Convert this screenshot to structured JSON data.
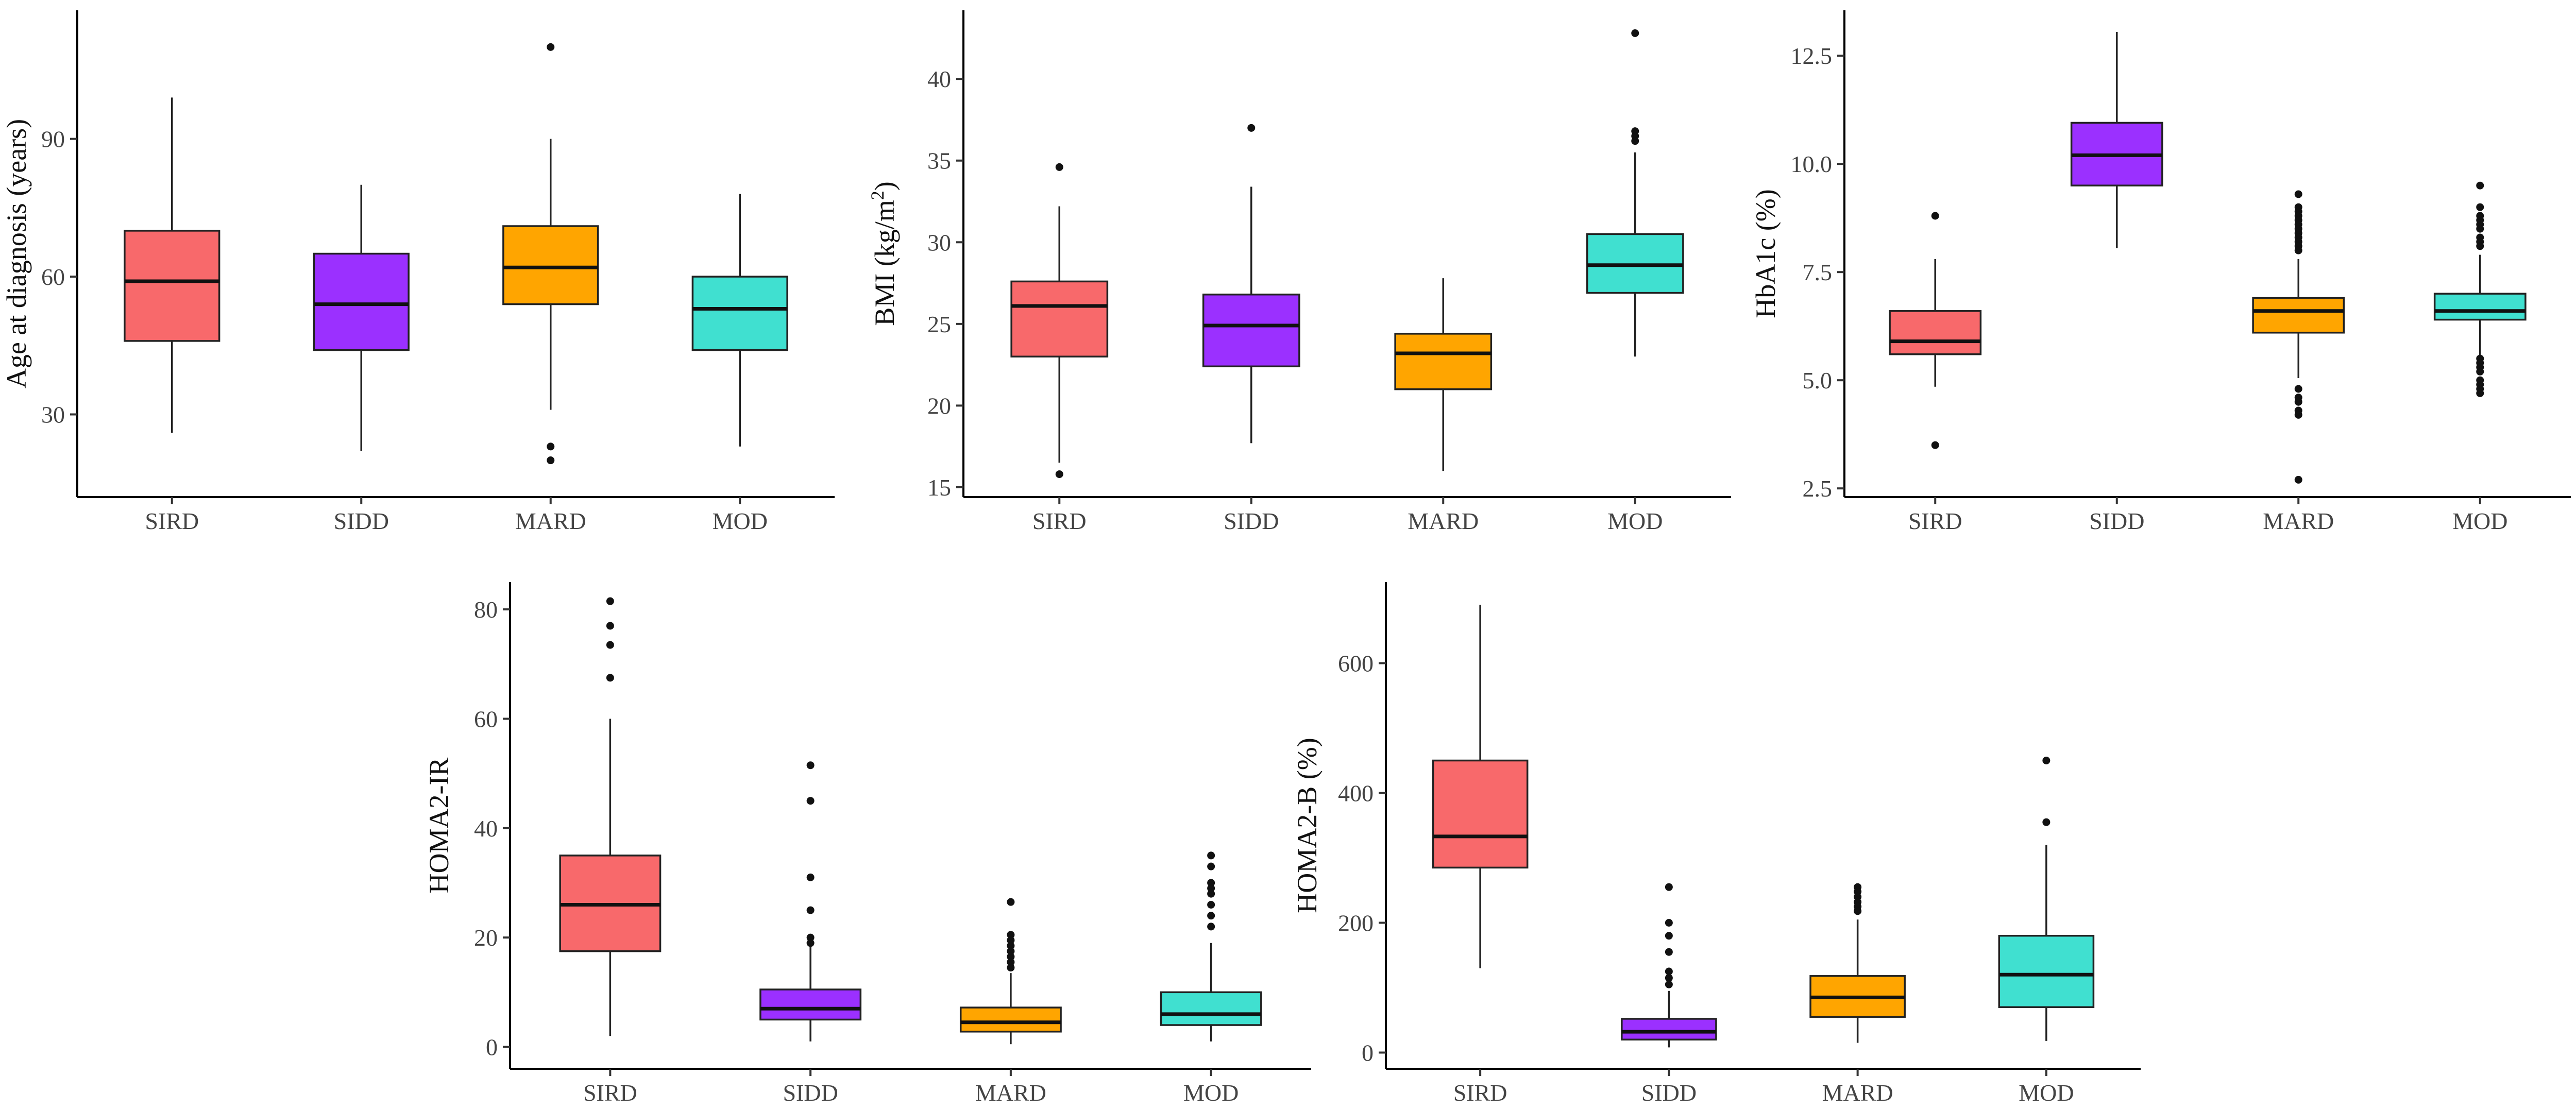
{
  "chart_data": [
    {
      "type": "box",
      "ylabel": "Age at diagnosis (years)",
      "categories": [
        "SIRD",
        "SIDD",
        "MARD",
        "MOD"
      ],
      "ylim": [
        12,
        118
      ],
      "yticks": [
        30,
        60,
        90
      ],
      "colors": [
        "#F8696B",
        "#9B30FF",
        "#FFA500",
        "#40E0D0"
      ],
      "boxes": [
        {
          "category": "SIRD",
          "whisker_low": 26,
          "q1": 46,
          "median": 59,
          "q3": 70,
          "whisker_high": 99,
          "outliers": []
        },
        {
          "category": "SIDD",
          "whisker_low": 22,
          "q1": 44,
          "median": 54,
          "q3": 65,
          "whisker_high": 80,
          "outliers": []
        },
        {
          "category": "MARD",
          "whisker_low": 31,
          "q1": 54,
          "median": 62,
          "q3": 71,
          "whisker_high": 90,
          "outliers": [
            110,
            23,
            20
          ]
        },
        {
          "category": "MOD",
          "whisker_low": 23,
          "q1": 44,
          "median": 53,
          "q3": 60,
          "whisker_high": 78,
          "outliers": []
        }
      ]
    },
    {
      "type": "box",
      "ylabel": "BMI (kg/m",
      "ylabel_sup": "2",
      "ylabel_end": ")",
      "categories": [
        "SIRD",
        "SIDD",
        "MARD",
        "MOD"
      ],
      "ylim": [
        14.4,
        44.2
      ],
      "yticks": [
        15,
        20,
        25,
        30,
        35,
        40
      ],
      "colors": [
        "#F8696B",
        "#9B30FF",
        "#FFA500",
        "#40E0D0"
      ],
      "boxes": [
        {
          "category": "SIRD",
          "whisker_low": 16.5,
          "q1": 23,
          "median": 26.1,
          "q3": 27.6,
          "whisker_high": 32.2,
          "outliers": [
            34.6,
            15.8
          ]
        },
        {
          "category": "SIDD",
          "whisker_low": 17.7,
          "q1": 22.4,
          "median": 24.9,
          "q3": 26.8,
          "whisker_high": 33.4,
          "outliers": [
            37
          ]
        },
        {
          "category": "MARD",
          "whisker_low": 16,
          "q1": 21,
          "median": 23.2,
          "q3": 24.4,
          "whisker_high": 27.8,
          "outliers": []
        },
        {
          "category": "MOD",
          "whisker_low": 23,
          "q1": 26.9,
          "median": 28.6,
          "q3": 30.5,
          "whisker_high": 35.5,
          "outliers": [
            42.8,
            36.8,
            36.5,
            36.2
          ]
        }
      ]
    },
    {
      "type": "box",
      "ylabel": "HbA1c (%)",
      "categories": [
        "SIRD",
        "SIDD",
        "MARD",
        "MOD"
      ],
      "ylim": [
        2.3,
        13.55
      ],
      "yticks": [
        "2.5",
        "5.0",
        "7.5",
        "10.0",
        "12.5"
      ],
      "colors": [
        "#F8696B",
        "#9B30FF",
        "#FFA500",
        "#40E0D0"
      ],
      "boxes": [
        {
          "category": "SIRD",
          "whisker_low": 4.85,
          "q1": 5.6,
          "median": 5.9,
          "q3": 6.6,
          "whisker_high": 7.8,
          "outliers": [
            8.8,
            3.5
          ]
        },
        {
          "category": "SIDD",
          "whisker_low": 8.05,
          "q1": 9.5,
          "median": 10.2,
          "q3": 10.95,
          "whisker_high": 13.05,
          "outliers": []
        },
        {
          "category": "MARD",
          "whisker_low": 5.05,
          "q1": 6.1,
          "median": 6.6,
          "q3": 6.9,
          "whisker_high": 7.8,
          "outliers": [
            9.3,
            9.0,
            8.9,
            8.8,
            8.7,
            8.6,
            8.5,
            8.4,
            8.3,
            8.2,
            8.1,
            8.0,
            4.8,
            4.6,
            4.5,
            4.3,
            4.2,
            2.7
          ]
        },
        {
          "category": "MOD",
          "whisker_low": 5.55,
          "q1": 6.4,
          "median": 6.6,
          "q3": 7.0,
          "whisker_high": 7.9,
          "outliers": [
            9.5,
            9.0,
            8.8,
            8.7,
            8.6,
            8.5,
            8.3,
            8.2,
            8.1,
            5.5,
            5.4,
            5.3,
            5.2,
            5.0,
            4.9,
            4.8,
            4.7
          ]
        }
      ]
    },
    {
      "type": "box",
      "ylabel": "HOMA2-IR",
      "categories": [
        "SIRD",
        "SIDD",
        "MARD",
        "MOD"
      ],
      "ylim": [
        -4,
        85
      ],
      "yticks": [
        0,
        20,
        40,
        60,
        80
      ],
      "colors": [
        "#F8696B",
        "#9B30FF",
        "#FFA500",
        "#40E0D0"
      ],
      "boxes": [
        {
          "category": "SIRD",
          "whisker_low": 2,
          "q1": 17.5,
          "median": 26,
          "q3": 35,
          "whisker_high": 60,
          "outliers": [
            81.5,
            77,
            73.5,
            67.5
          ]
        },
        {
          "category": "SIDD",
          "whisker_low": 1,
          "q1": 5,
          "median": 7,
          "q3": 10.5,
          "whisker_high": 18.5,
          "outliers": [
            51.5,
            45,
            31,
            25,
            20,
            19
          ]
        },
        {
          "category": "MARD",
          "whisker_low": 0.5,
          "q1": 2.8,
          "median": 4.5,
          "q3": 7.2,
          "whisker_high": 13.5,
          "outliers": [
            26.5,
            20.5,
            19.5,
            18.5,
            17.5,
            16.5,
            15.5,
            14.5
          ]
        },
        {
          "category": "MOD",
          "whisker_low": 1,
          "q1": 4,
          "median": 6,
          "q3": 10,
          "whisker_high": 19,
          "outliers": [
            35,
            33,
            30,
            29,
            28,
            26,
            24,
            22
          ]
        }
      ]
    },
    {
      "type": "box",
      "ylabel": "HOMA2-B (%)",
      "categories": [
        "SIRD",
        "SIDD",
        "MARD",
        "MOD"
      ],
      "ylim": [
        -25,
        725
      ],
      "yticks": [
        0,
        200,
        400,
        600
      ],
      "colors": [
        "#F8696B",
        "#9B30FF",
        "#FFA500",
        "#40E0D0"
      ],
      "boxes": [
        {
          "category": "SIRD",
          "whisker_low": 130,
          "q1": 285,
          "median": 333,
          "q3": 450,
          "whisker_high": 690,
          "outliers": []
        },
        {
          "category": "SIDD",
          "whisker_low": 8,
          "q1": 20,
          "median": 32,
          "q3": 52,
          "whisker_high": 95,
          "outliers": [
            255,
            200,
            180,
            155,
            125,
            115,
            105
          ]
        },
        {
          "category": "MARD",
          "whisker_low": 15,
          "q1": 55,
          "median": 85,
          "q3": 118,
          "whisker_high": 205,
          "outliers": [
            255,
            248,
            240,
            232,
            225,
            218
          ]
        },
        {
          "category": "MOD",
          "whisker_low": 18,
          "q1": 70,
          "median": 120,
          "q3": 180,
          "whisker_high": 320,
          "outliers": [
            450,
            355
          ]
        }
      ]
    }
  ]
}
